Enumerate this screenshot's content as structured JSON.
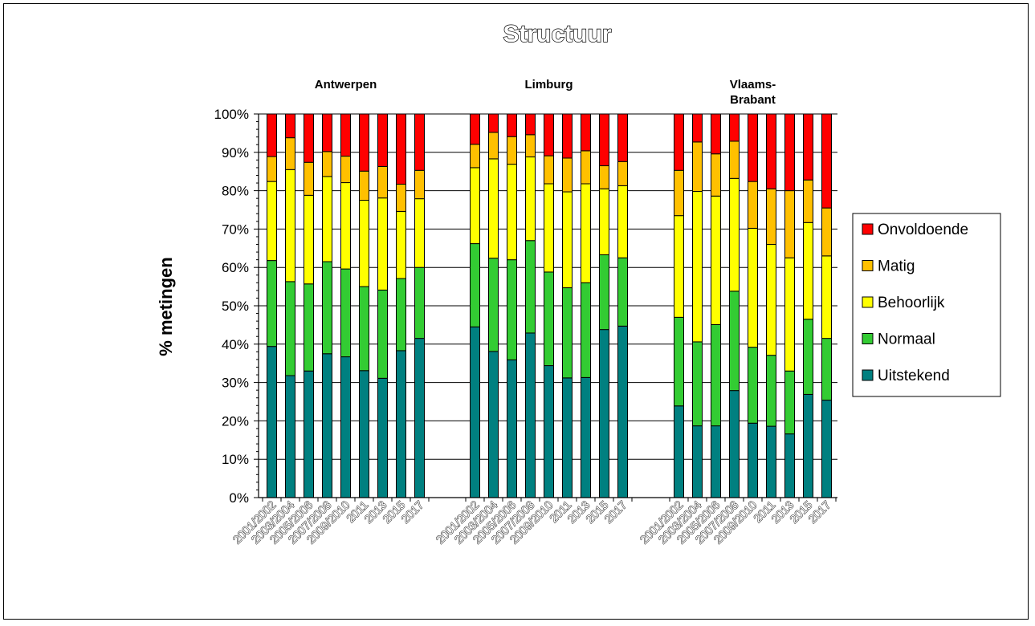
{
  "chart_data": {
    "type": "bar",
    "stacked": true,
    "title": "Structuur",
    "ylabel": "% metingen",
    "xlabel": "",
    "ylim": [
      0,
      100
    ],
    "yticks": [
      "0%",
      "10%",
      "20%",
      "30%",
      "40%",
      "50%",
      "60%",
      "70%",
      "80%",
      "90%",
      "100%"
    ],
    "categories": [
      "2001/2002",
      "2003/2004",
      "2005/2006",
      "2007/2008",
      "2009/2010",
      "2011",
      "2013",
      "2015",
      "2017"
    ],
    "grid": true,
    "legend_position": "right",
    "legend_order": [
      "Onvoldoende",
      "Matig",
      "Behoorlijk",
      "Normaal",
      "Uitstekend"
    ],
    "series_colors": {
      "Uitstekend": "#008080",
      "Normaal": "#33cc33",
      "Behoorlijk": "#ffff00",
      "Matig": "#ffc000",
      "Onvoldoende": "#ff0000"
    },
    "groups": [
      {
        "label": "Antwerpen",
        "cumulative": {
          "Uitstekend": [
            39.4,
            31.8,
            33.0,
            37.5,
            36.7,
            33.1,
            31.1,
            38.3,
            41.5
          ],
          "Normaal": [
            61.8,
            56.3,
            55.7,
            61.5,
            59.6,
            55.0,
            54.1,
            57.1,
            60.0
          ],
          "Behoorlijk": [
            82.4,
            85.5,
            78.8,
            83.7,
            82.1,
            77.5,
            78.1,
            74.6,
            77.9
          ],
          "Matig": [
            88.9,
            93.8,
            87.4,
            90.2,
            89.0,
            85.1,
            86.3,
            81.7,
            85.3
          ],
          "Onvoldoende": [
            100,
            100,
            100,
            100,
            100,
            100,
            100,
            100,
            100
          ]
        }
      },
      {
        "label": "Limburg",
        "cumulative": {
          "Uitstekend": [
            44.5,
            38.1,
            35.9,
            42.9,
            34.4,
            31.2,
            31.3,
            43.8,
            44.7
          ],
          "Normaal": [
            66.2,
            62.4,
            62.0,
            67.0,
            58.8,
            54.7,
            56.0,
            63.3,
            62.5
          ],
          "Behoorlijk": [
            86.0,
            88.3,
            86.9,
            88.8,
            81.8,
            79.7,
            81.8,
            80.5,
            81.3
          ],
          "Matig": [
            92.1,
            95.2,
            94.1,
            94.6,
            89.1,
            88.5,
            90.4,
            86.5,
            87.6
          ],
          "Onvoldoende": [
            100,
            100,
            100,
            100,
            100,
            100,
            100,
            100,
            100
          ]
        }
      },
      {
        "label": "Vlaams-\nBrabant",
        "label_lines": [
          "Vlaams-",
          "Brabant"
        ],
        "cumulative": {
          "Uitstekend": [
            23.9,
            18.7,
            18.7,
            27.9,
            19.4,
            18.6,
            16.6,
            26.9,
            25.4
          ],
          "Normaal": [
            47.0,
            40.6,
            45.1,
            53.8,
            39.2,
            37.1,
            33.0,
            46.5,
            41.5
          ],
          "Behoorlijk": [
            73.5,
            79.8,
            78.6,
            83.2,
            70.2,
            66.0,
            62.5,
            71.7,
            63.0
          ],
          "Matig": [
            85.3,
            92.7,
            89.6,
            92.9,
            82.4,
            80.5,
            80.0,
            82.8,
            75.5
          ],
          "Onvoldoende": [
            100,
            100,
            100,
            100,
            100,
            100,
            100,
            100,
            100
          ]
        }
      }
    ]
  }
}
